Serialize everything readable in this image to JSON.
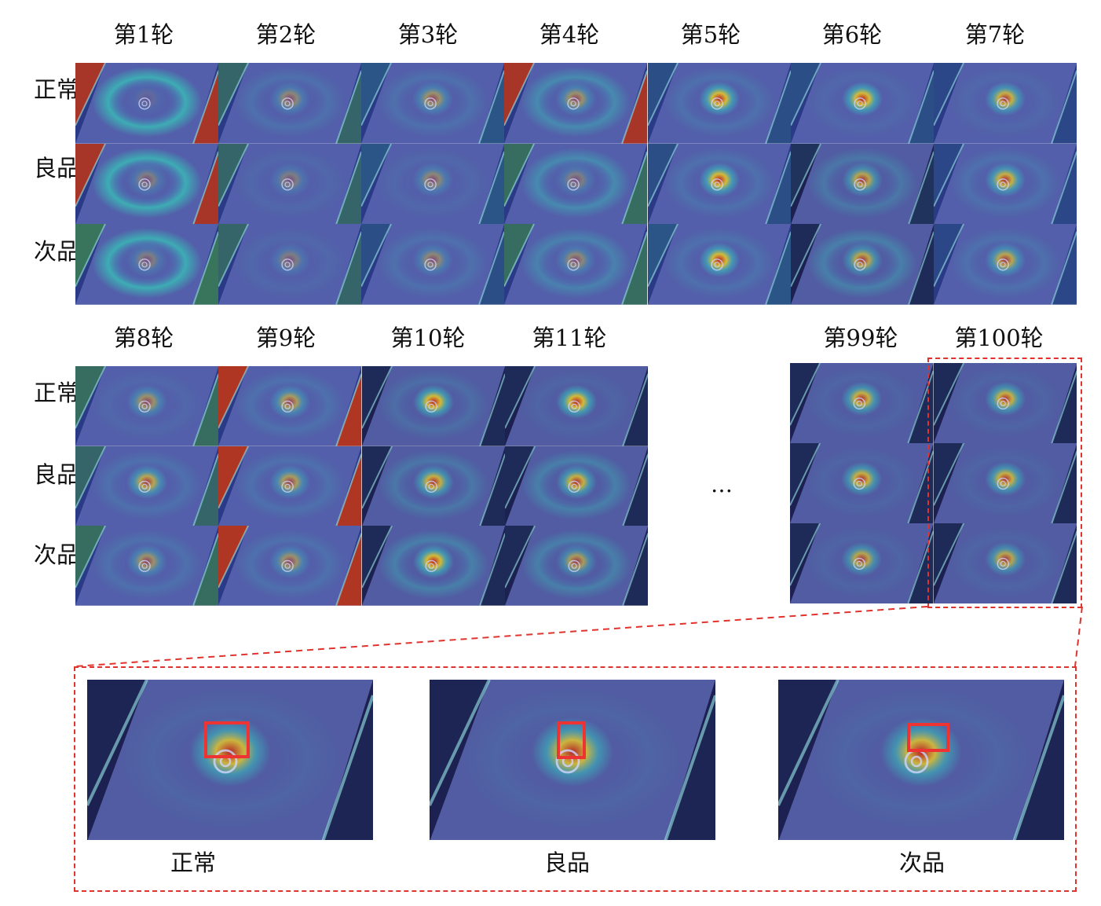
{
  "top_rounds": [
    "第1轮",
    "第2轮",
    "第3轮",
    "第4轮",
    "第5轮",
    "第6轮",
    "第7轮"
  ],
  "mid_rounds": [
    "第8轮",
    "第9轮",
    "第10轮",
    "第11轮"
  ],
  "late_rounds": [
    "第99轮",
    "第100轮"
  ],
  "row_labels": [
    "正常",
    "良品",
    "次品"
  ],
  "ellipsis": "…",
  "zoom_labels": [
    "正常",
    "良品",
    "次品"
  ],
  "colors": {
    "dash": "#e0332e",
    "box": "#ee3333",
    "bg_dark": "#1c2152",
    "plate": "#4f5aa0"
  }
}
